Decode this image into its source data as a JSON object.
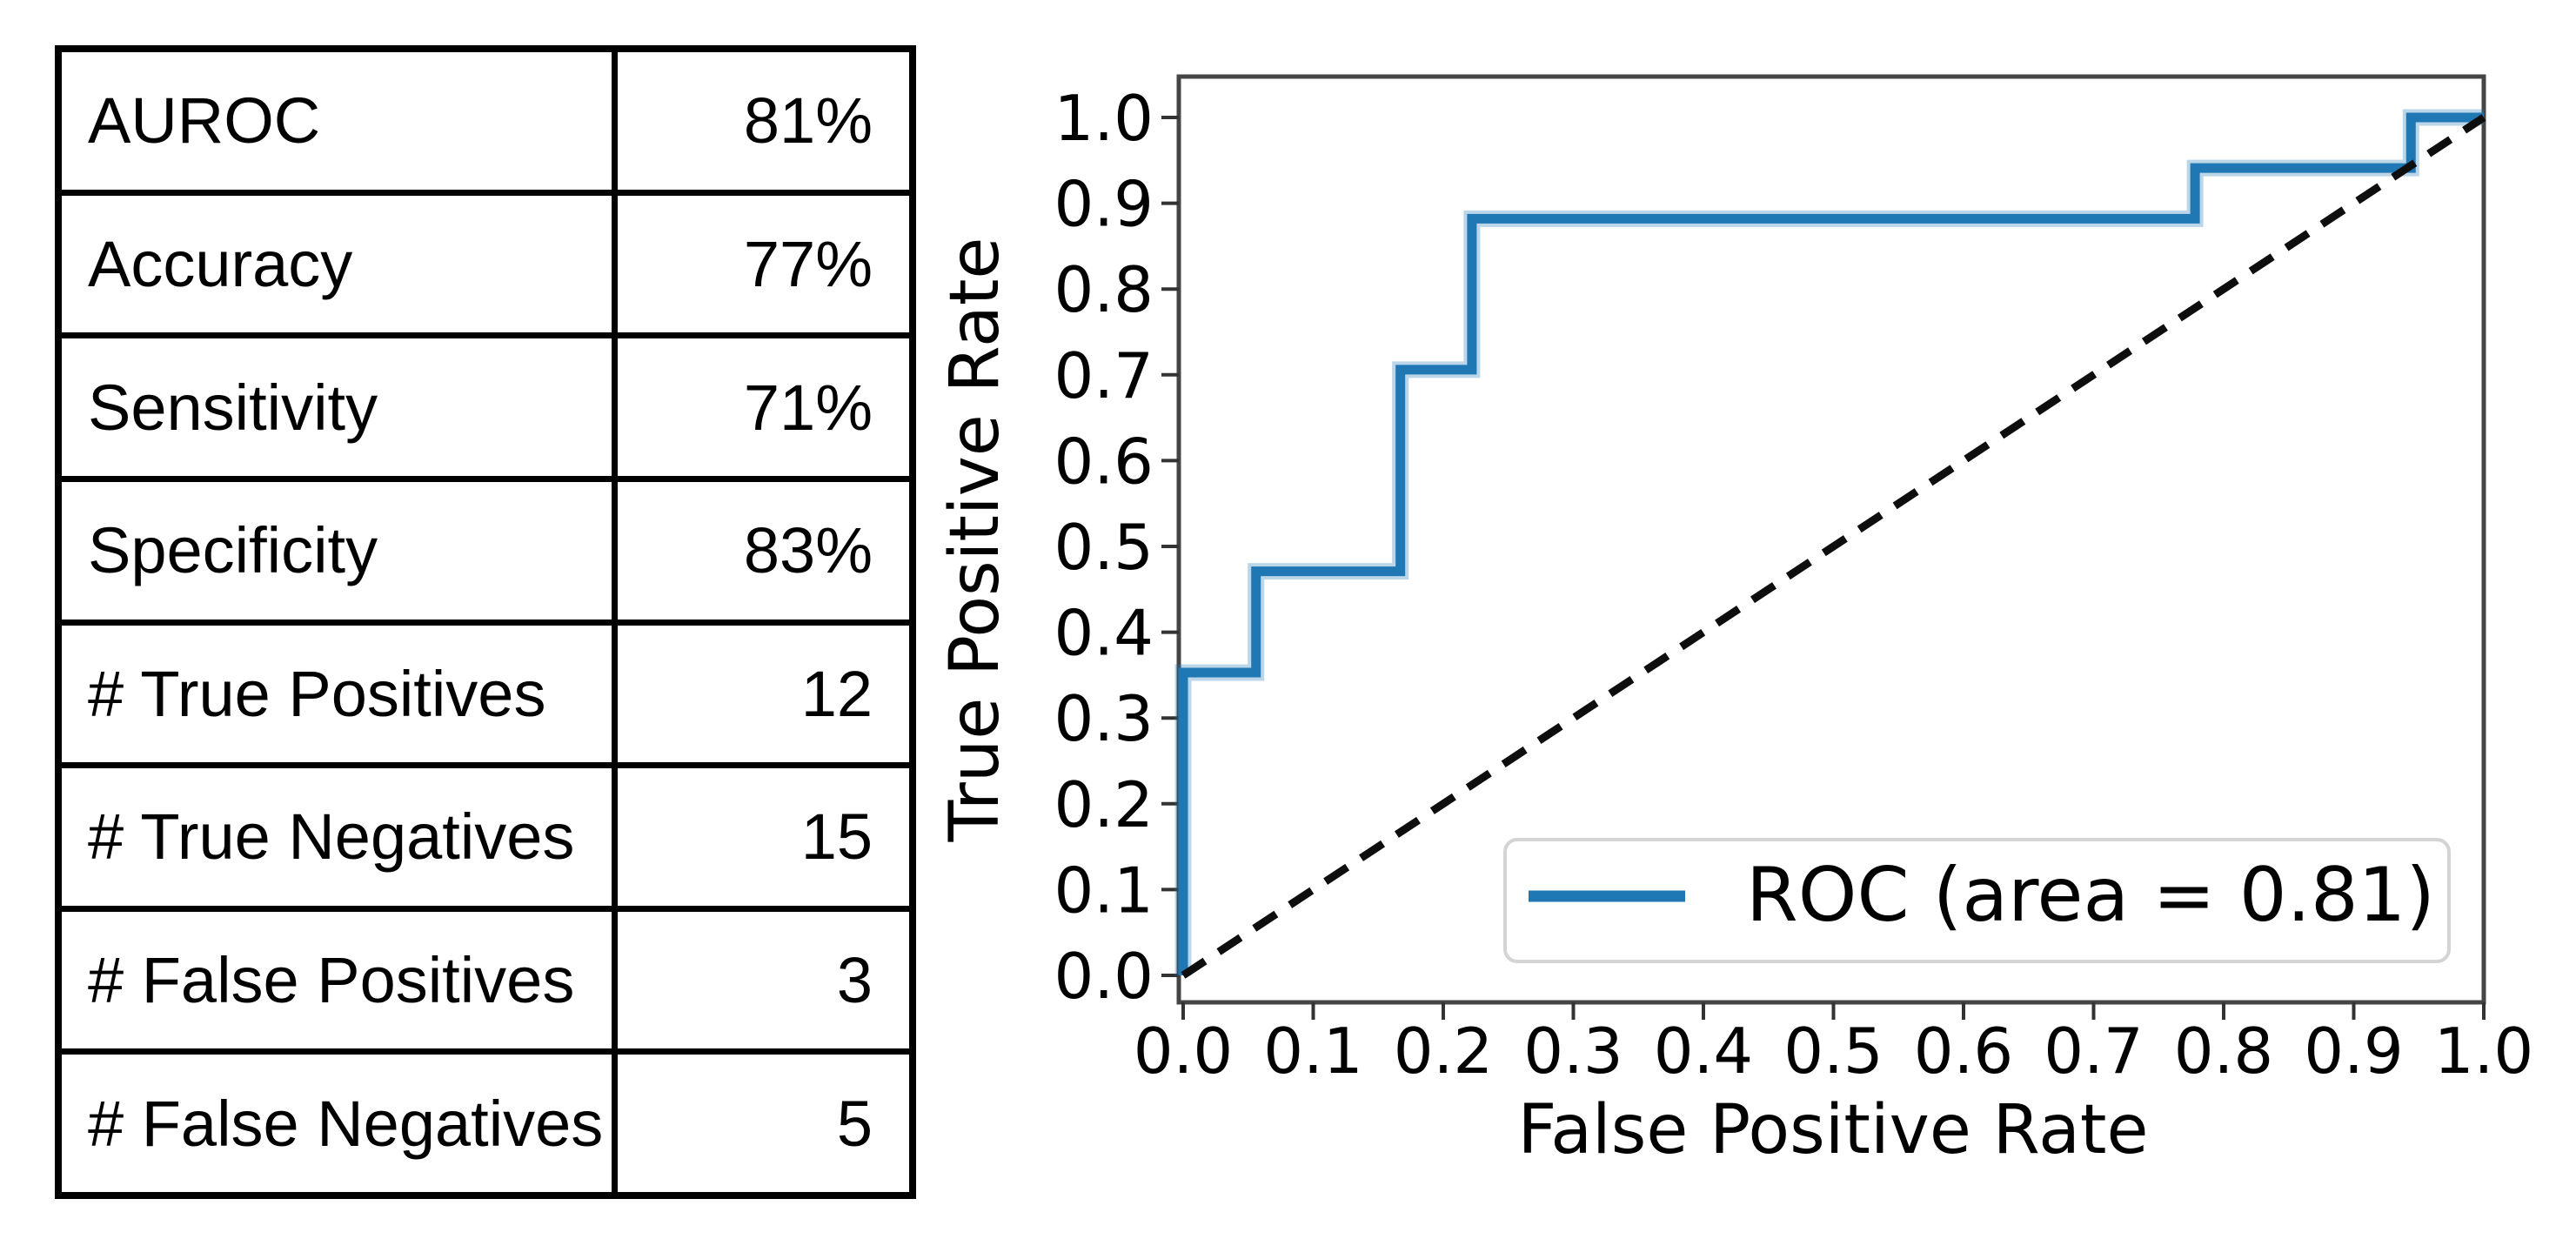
{
  "metrics_table": {
    "rows": [
      {
        "label": "AUROC",
        "value": "81%"
      },
      {
        "label": "Accuracy",
        "value": "77%"
      },
      {
        "label": "Sensitivity",
        "value": "71%"
      },
      {
        "label": "Specificity",
        "value": "83%"
      },
      {
        "label": "# True Positives",
        "value": "12"
      },
      {
        "label": "# True Negatives",
        "value": "15"
      },
      {
        "label": "# False Positives",
        "value": "3"
      },
      {
        "label": "# False Negatives",
        "value": "5"
      }
    ]
  },
  "chart_data": {
    "type": "line",
    "title": "",
    "xlabel": "False Positive Rate",
    "ylabel": "True Positive Rate",
    "xlim": [
      0,
      1
    ],
    "ylim": [
      -0.03,
      1.05
    ],
    "grid": false,
    "x_tick_labels": [
      "0.0",
      "0.1",
      "0.2",
      "0.3",
      "0.4",
      "0.5",
      "0.6",
      "0.7",
      "0.8",
      "0.9",
      "1.0"
    ],
    "y_tick_labels": [
      "0.0",
      "0.1",
      "0.2",
      "0.3",
      "0.4",
      "0.5",
      "0.6",
      "0.7",
      "0.8",
      "0.9",
      "1.0"
    ],
    "series": [
      {
        "name": "ROC (area = 0.81)",
        "style": "solid",
        "color": "#1f77b4",
        "points": [
          [
            0.0,
            0.0
          ],
          [
            0.0,
            0.353
          ],
          [
            0.056,
            0.353
          ],
          [
            0.056,
            0.471
          ],
          [
            0.167,
            0.471
          ],
          [
            0.167,
            0.706
          ],
          [
            0.222,
            0.706
          ],
          [
            0.222,
            0.882
          ],
          [
            0.778,
            0.882
          ],
          [
            0.778,
            0.941
          ],
          [
            0.944,
            0.941
          ],
          [
            0.944,
            1.0
          ],
          [
            1.0,
            1.0
          ]
        ]
      },
      {
        "name": "chance-diagonal",
        "style": "dashed",
        "color": "#0e0e0e",
        "points": [
          [
            0.0,
            0.0
          ],
          [
            1.0,
            1.0
          ]
        ]
      }
    ],
    "legend": {
      "label": "ROC (area = 0.81)",
      "position": "lower right",
      "line_color": "#1f77b4",
      "border_color": "#d4d4d4"
    },
    "auc": "0.81"
  }
}
